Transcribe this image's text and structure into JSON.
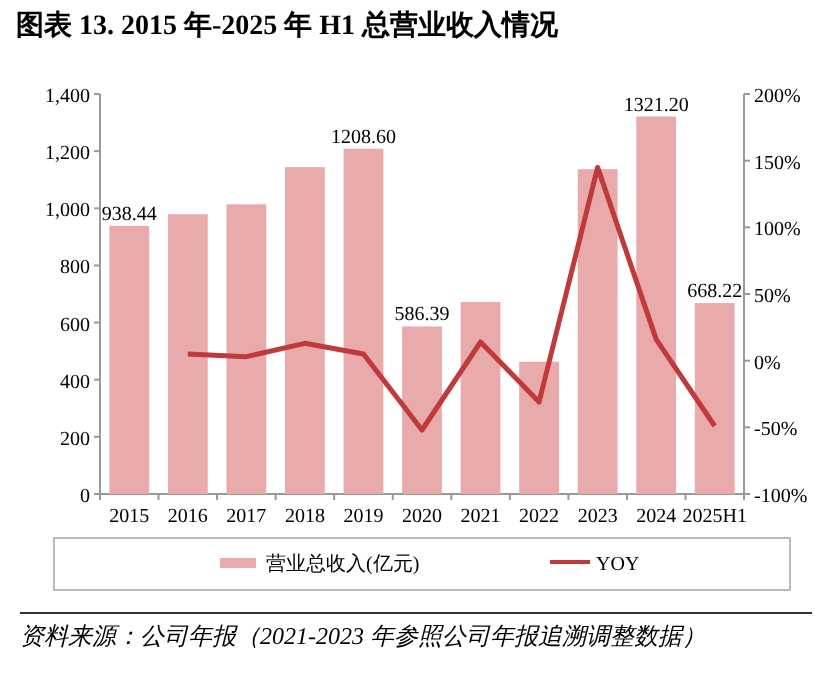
{
  "chart_data": {
    "type": "bar",
    "title": "图表 13. 2015 年-2025 年 H1 总营业收入情况",
    "categories": [
      "2015",
      "2016",
      "2017",
      "2018",
      "2019",
      "2020",
      "2021",
      "2022",
      "2023",
      "2024",
      "2025H1"
    ],
    "series": [
      {
        "name": "营业总收入(亿元)",
        "color": "#e8aaaa",
        "values": [
          938.44,
          979,
          1014,
          1144,
          1208.6,
          586.39,
          672,
          463,
          1137,
          1321.2,
          668.22
        ],
        "value_labels": [
          "938.44",
          null,
          null,
          null,
          "1208.60",
          "586.39",
          null,
          null,
          null,
          "1321.20",
          "668.22"
        ]
      },
      {
        "name": "YOY",
        "type": "line",
        "axis": "y2",
        "color": "#c0393b",
        "values": [
          null,
          5,
          3,
          13,
          5,
          -52,
          14,
          -31,
          145,
          16,
          -49
        ]
      }
    ],
    "ylim": [
      0,
      1400
    ],
    "yticks": [
      {
        "value": 0,
        "label": "0"
      },
      {
        "value": 200,
        "label": "200"
      },
      {
        "value": 400,
        "label": "400"
      },
      {
        "value": 600,
        "label": "600"
      },
      {
        "value": 800,
        "label": "800"
      },
      {
        "value": 1000,
        "label": "1,000"
      },
      {
        "value": 1200,
        "label": "1,200"
      },
      {
        "value": 1400,
        "label": "1,400"
      }
    ],
    "y2lim": [
      -100,
      200
    ],
    "y2ticks": [
      {
        "value": -100,
        "label": "-100%"
      },
      {
        "value": -50,
        "label": "-50%"
      },
      {
        "value": 0,
        "label": "0%"
      },
      {
        "value": 50,
        "label": "50%"
      },
      {
        "value": 100,
        "label": "100%"
      },
      {
        "value": 150,
        "label": "150%"
      },
      {
        "value": 200,
        "label": "200%"
      }
    ],
    "legend": "bottom",
    "grid": false,
    "annotations": [
      "资料来源：公司年报（2021-2023 年参照公司年报追溯调整数据）"
    ]
  }
}
